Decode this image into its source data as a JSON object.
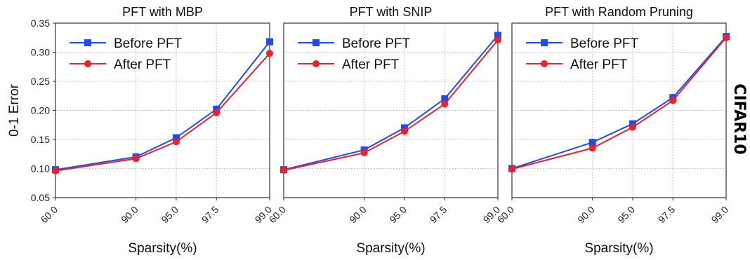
{
  "figure": {
    "side_label": "CIFAR10"
  },
  "chart_data": [
    {
      "type": "line",
      "title": "PFT with MBP",
      "xlabel": "Sparsity(%)",
      "ylabel": "0-1 Error",
      "x": [
        60.0,
        90.0,
        95.0,
        97.5,
        99.0
      ],
      "x_tick_labels": [
        "60.0",
        "90.0",
        "95.0",
        "97.5",
        "99.0"
      ],
      "x_scale": "log(100 - x)",
      "ylim": [
        0.05,
        0.35
      ],
      "y_ticks": [
        "0.05",
        "0.10",
        "0.15",
        "0.20",
        "0.25",
        "0.30",
        "0.35"
      ],
      "grid": true,
      "legend_position": "top-left",
      "series": [
        {
          "name": "Before PFT",
          "color": "#1f4cf0",
          "marker": "square",
          "values": [
            0.098,
            0.12,
            0.153,
            0.202,
            0.318
          ]
        },
        {
          "name": "After PFT",
          "color": "#f0202a",
          "marker": "circle",
          "values": [
            0.096,
            0.117,
            0.146,
            0.196,
            0.298
          ]
        }
      ]
    },
    {
      "type": "line",
      "title": "PFT with SNIP",
      "xlabel": "Sparsity(%)",
      "ylabel": "",
      "x": [
        60.0,
        90.0,
        95.0,
        97.5,
        99.0
      ],
      "x_tick_labels": [
        "60.0",
        "90.0",
        "95.0",
        "97.5",
        "99.0"
      ],
      "x_scale": "log(100 - x)",
      "ylim": [
        0.05,
        0.35
      ],
      "y_ticks": [],
      "grid": true,
      "legend_position": "top-left",
      "series": [
        {
          "name": "Before PFT",
          "color": "#1f4cf0",
          "marker": "square",
          "values": [
            0.098,
            0.132,
            0.17,
            0.22,
            0.329
          ]
        },
        {
          "name": "After PFT",
          "color": "#f0202a",
          "marker": "circle",
          "values": [
            0.097,
            0.127,
            0.164,
            0.211,
            0.321
          ]
        }
      ]
    },
    {
      "type": "line",
      "title": "PFT with Random Pruning",
      "xlabel": "Sparsity(%)",
      "ylabel": "",
      "x": [
        60.0,
        90.0,
        95.0,
        97.5,
        99.0
      ],
      "x_tick_labels": [
        "60.0",
        "90.0",
        "95.0",
        "97.5",
        "99.0"
      ],
      "x_scale": "log(100 - x)",
      "ylim": [
        0.05,
        0.35
      ],
      "y_ticks": [],
      "grid": true,
      "legend_position": "top-left",
      "series": [
        {
          "name": "Before PFT",
          "color": "#1f4cf0",
          "marker": "square",
          "values": [
            0.1,
            0.145,
            0.177,
            0.222,
            0.327
          ]
        },
        {
          "name": "After PFT",
          "color": "#f0202a",
          "marker": "circle",
          "values": [
            0.099,
            0.135,
            0.171,
            0.217,
            0.325
          ]
        }
      ]
    }
  ]
}
